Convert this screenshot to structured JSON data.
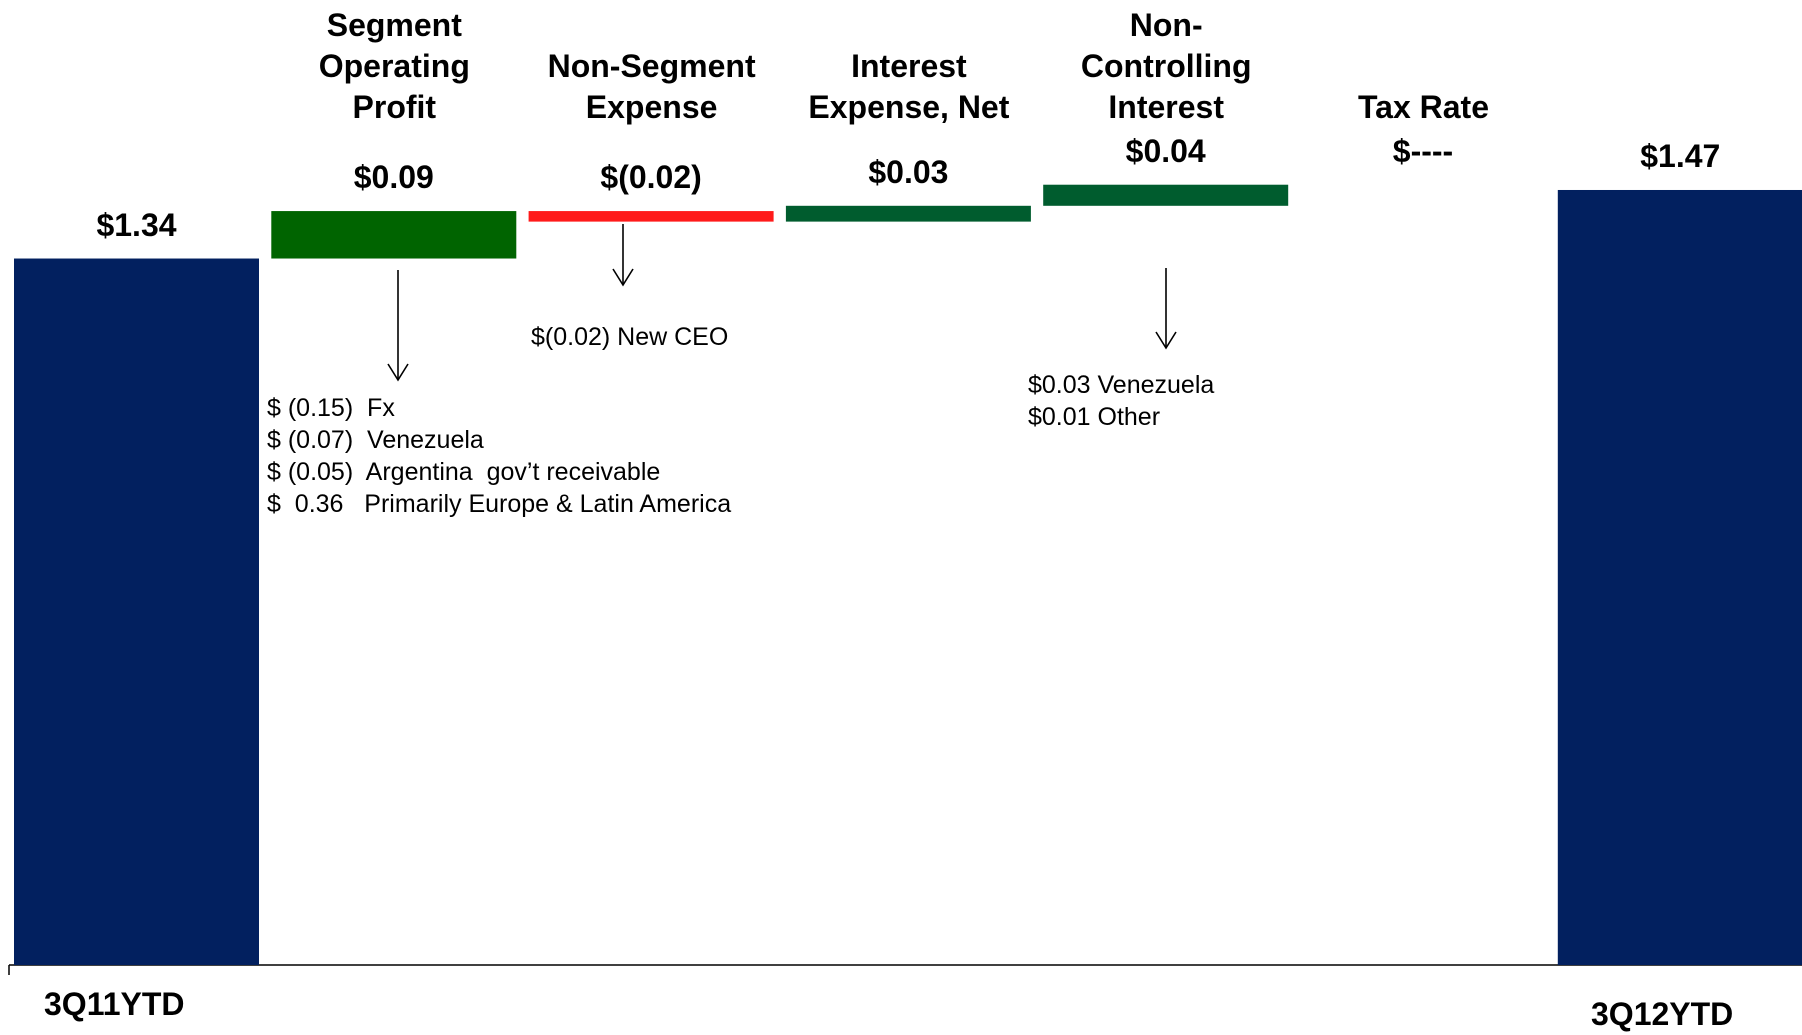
{
  "chart_data": {
    "type": "waterfall",
    "categories": [
      "3Q11YTD",
      "Segment Operating Profit",
      "Non-Segment Expense",
      "Interest Expense, Net",
      "Non-Controlling Interest",
      "Tax Rate",
      "3Q12YTD"
    ],
    "values": [
      1.34,
      0.09,
      -0.02,
      0.03,
      0.04,
      0,
      1.47
    ],
    "value_labels": [
      "$1.34",
      "$0.09",
      "$(0.02)",
      "$0.03",
      "$0.04",
      "$----",
      "$1.47"
    ],
    "colors": [
      "#02205f",
      "#006400",
      "#ff1a1a",
      "#005c2e",
      "#005c2e",
      "#005c2e",
      "#02205f"
    ],
    "ylim": [
      0,
      1.8
    ],
    "annotations": [
      [
        "$ (0.15)  Fx",
        "$ (0.07)  Venezuela",
        "$ (0.05)  Argentina  gov’t receivable",
        "$  0.36   Primarily Europe & Latin America"
      ],
      [
        "$(0.02) New CEO"
      ],
      [
        "$0.03 Venezuela",
        "$0.01 Other"
      ]
    ]
  }
}
